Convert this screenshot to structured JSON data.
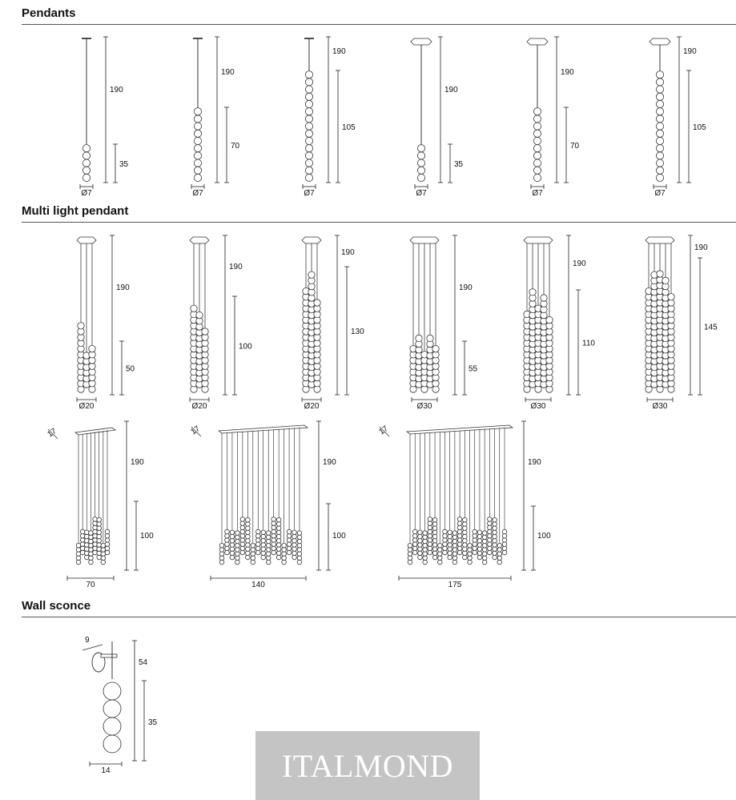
{
  "sections": {
    "pendants": "Pendants",
    "multi": "Multi light pendant",
    "wall": "Wall sconce"
  },
  "pendants": [
    {
      "canopy": "stem",
      "beads": 5,
      "height": "190",
      "drop": "35",
      "diameter": "Ø7"
    },
    {
      "canopy": "stem",
      "beads": 10,
      "height": "190",
      "drop": "70",
      "diameter": "Ø7"
    },
    {
      "canopy": "stem",
      "beads": 15,
      "height": "190",
      "drop": "105",
      "diameter": "Ø7"
    },
    {
      "canopy": "hex",
      "beads": 5,
      "height": "190",
      "drop": "35",
      "diameter": "Ø7"
    },
    {
      "canopy": "hex",
      "beads": 10,
      "height": "190",
      "drop": "70",
      "diameter": "Ø7"
    },
    {
      "canopy": "hex",
      "beads": 15,
      "height": "190",
      "drop": "105",
      "diameter": "Ø7"
    }
  ],
  "multi_pendants": [
    {
      "height": "190",
      "drop": "50",
      "diameter": "Ø20"
    },
    {
      "height": "190",
      "drop": "100",
      "diameter": "Ø20"
    },
    {
      "height": "190",
      "drop": "130",
      "diameter": "Ø20"
    },
    {
      "height": "190",
      "drop": "55",
      "diameter": "Ø30"
    },
    {
      "height": "190",
      "drop": "110",
      "diameter": "Ø30"
    },
    {
      "height": "190",
      "drop": "145",
      "diameter": "Ø30"
    }
  ],
  "linear_pendants": [
    {
      "depth": "17",
      "height": "190",
      "drop": "100",
      "width": "70"
    },
    {
      "depth": "17",
      "height": "190",
      "drop": "100",
      "width": "140"
    },
    {
      "depth": "17",
      "height": "190",
      "drop": "100",
      "width": "175"
    }
  ],
  "wall_sconce": {
    "depth": "9",
    "height": "54",
    "drop": "35",
    "width": "14"
  },
  "watermark": "ITALMOND"
}
